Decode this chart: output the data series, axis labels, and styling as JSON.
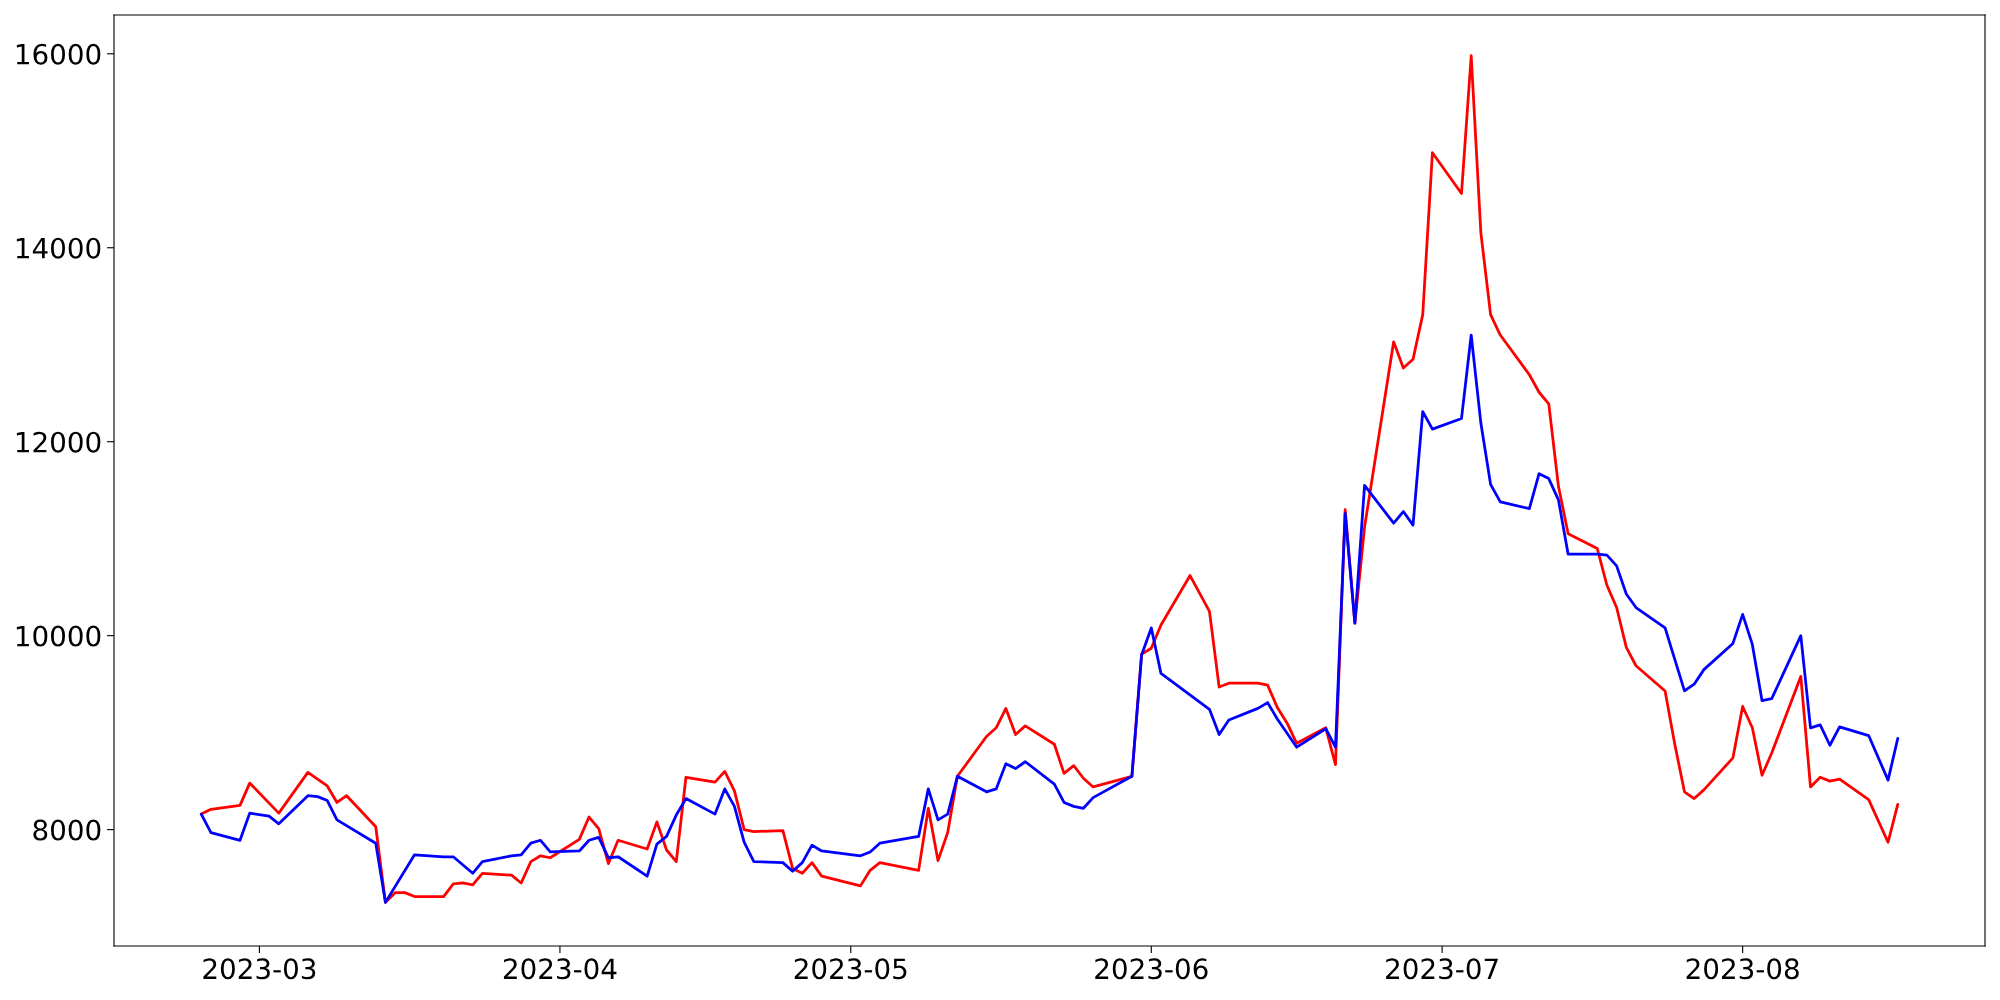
{
  "chart_data": {
    "type": "line",
    "xlim": [
      "2023-02-14",
      "2023-08-26"
    ],
    "ylim": [
      6800,
      16400
    ],
    "xticks": [
      {
        "value": "2023-03-01",
        "label": "2023-03"
      },
      {
        "value": "2023-04-01",
        "label": "2023-04"
      },
      {
        "value": "2023-05-01",
        "label": "2023-05"
      },
      {
        "value": "2023-06-01",
        "label": "2023-06"
      },
      {
        "value": "2023-07-01",
        "label": "2023-07"
      },
      {
        "value": "2023-08-01",
        "label": "2023-08"
      }
    ],
    "yticks": [
      8000,
      10000,
      12000,
      14000,
      16000
    ],
    "grid": false,
    "series": [
      {
        "color": "#ff0000",
        "x": [
          "2023-02-23",
          "2023-02-24",
          "2023-02-27",
          "2023-02-28",
          "2023-03-03",
          "2023-03-06",
          "2023-03-08",
          "2023-03-09",
          "2023-03-10",
          "2023-03-13",
          "2023-03-14",
          "2023-03-15",
          "2023-03-16",
          "2023-03-17",
          "2023-03-20",
          "2023-03-21",
          "2023-03-22",
          "2023-03-23",
          "2023-03-24",
          "2023-03-27",
          "2023-03-28",
          "2023-03-29",
          "2023-03-30",
          "2023-03-31",
          "2023-04-03",
          "2023-04-04",
          "2023-04-05",
          "2023-04-06",
          "2023-04-07",
          "2023-04-10",
          "2023-04-11",
          "2023-04-12",
          "2023-04-13",
          "2023-04-14",
          "2023-04-17",
          "2023-04-18",
          "2023-04-19",
          "2023-04-20",
          "2023-04-21",
          "2023-04-24",
          "2023-04-25",
          "2023-04-26",
          "2023-04-27",
          "2023-04-28",
          "2023-05-02",
          "2023-05-03",
          "2023-05-04",
          "2023-05-08",
          "2023-05-09",
          "2023-05-10",
          "2023-05-11",
          "2023-05-12",
          "2023-05-15",
          "2023-05-16",
          "2023-05-17",
          "2023-05-18",
          "2023-05-19",
          "2023-05-22",
          "2023-05-23",
          "2023-05-24",
          "2023-05-25",
          "2023-05-26",
          "2023-05-30",
          "2023-05-31",
          "2023-06-01",
          "2023-06-02",
          "2023-06-05",
          "2023-06-07",
          "2023-06-08",
          "2023-06-09",
          "2023-06-12",
          "2023-06-13",
          "2023-06-14",
          "2023-06-15",
          "2023-06-16",
          "2023-06-19",
          "2023-06-20",
          "2023-06-21",
          "2023-06-22",
          "2023-06-23",
          "2023-06-26",
          "2023-06-27",
          "2023-06-28",
          "2023-06-29",
          "2023-06-30",
          "2023-07-03",
          "2023-07-04",
          "2023-07-05",
          "2023-07-06",
          "2023-07-07",
          "2023-07-10",
          "2023-07-11",
          "2023-07-12",
          "2023-07-13",
          "2023-07-14",
          "2023-07-17",
          "2023-07-18",
          "2023-07-19",
          "2023-07-20",
          "2023-07-21",
          "2023-07-24",
          "2023-07-25",
          "2023-07-26",
          "2023-07-27",
          "2023-07-28",
          "2023-07-31",
          "2023-08-01",
          "2023-08-02",
          "2023-08-03",
          "2023-08-04",
          "2023-08-07",
          "2023-08-08",
          "2023-08-09",
          "2023-08-10",
          "2023-08-11",
          "2023-08-14",
          "2023-08-16",
          "2023-08-17"
        ],
        "values": [
          8160,
          8210,
          8250,
          8480,
          8170,
          8590,
          8450,
          8280,
          8350,
          8030,
          7250,
          7350,
          7350,
          7310,
          7310,
          7440,
          7450,
          7430,
          7550,
          7530,
          7450,
          7670,
          7730,
          7710,
          7900,
          8130,
          8010,
          7650,
          7890,
          7800,
          8080,
          7790,
          7670,
          8540,
          8490,
          8600,
          8400,
          8000,
          7980,
          7990,
          7600,
          7550,
          7660,
          7520,
          7420,
          7580,
          7660,
          7580,
          8220,
          7680,
          7970,
          8550,
          8960,
          9050,
          9250,
          8980,
          9070,
          8880,
          8580,
          8660,
          8530,
          8440,
          8550,
          9810,
          9870,
          10110,
          10620,
          10250,
          9470,
          9510,
          9510,
          9490,
          9260,
          9100,
          8890,
          9050,
          8670,
          11300,
          10130,
          11120,
          13030,
          12760,
          12850,
          13310,
          14980,
          14560,
          15980,
          14150,
          13310,
          13100,
          12690,
          12510,
          12390,
          11540,
          11050,
          10900,
          10520,
          10290,
          9880,
          9690,
          9430,
          8880,
          8390,
          8320,
          8410,
          8740,
          9270,
          9050,
          8560,
          8790,
          9580,
          8440,
          8540,
          8500,
          8520,
          8310,
          7870,
          8260
        ]
      },
      {
        "color": "#0000ff",
        "x": [
          "2023-02-23",
          "2023-02-24",
          "2023-02-27",
          "2023-02-28",
          "2023-03-02",
          "2023-03-03",
          "2023-03-06",
          "2023-03-07",
          "2023-03-08",
          "2023-03-09",
          "2023-03-13",
          "2023-03-14",
          "2023-03-17",
          "2023-03-20",
          "2023-03-21",
          "2023-03-23",
          "2023-03-24",
          "2023-03-27",
          "2023-03-28",
          "2023-03-29",
          "2023-03-30",
          "2023-03-31",
          "2023-04-03",
          "2023-04-04",
          "2023-04-05",
          "2023-04-06",
          "2023-04-07",
          "2023-04-10",
          "2023-04-11",
          "2023-04-12",
          "2023-04-13",
          "2023-04-14",
          "2023-04-17",
          "2023-04-18",
          "2023-04-19",
          "2023-04-20",
          "2023-04-21",
          "2023-04-24",
          "2023-04-25",
          "2023-04-26",
          "2023-04-27",
          "2023-04-28",
          "2023-05-02",
          "2023-05-03",
          "2023-05-04",
          "2023-05-08",
          "2023-05-09",
          "2023-05-10",
          "2023-05-11",
          "2023-05-12",
          "2023-05-15",
          "2023-05-16",
          "2023-05-17",
          "2023-05-18",
          "2023-05-19",
          "2023-05-22",
          "2023-05-23",
          "2023-05-24",
          "2023-05-25",
          "2023-05-26",
          "2023-05-30",
          "2023-05-31",
          "2023-06-01",
          "2023-06-02",
          "2023-06-07",
          "2023-06-08",
          "2023-06-09",
          "2023-06-12",
          "2023-06-13",
          "2023-06-14",
          "2023-06-16",
          "2023-06-19",
          "2023-06-20",
          "2023-06-21",
          "2023-06-22",
          "2023-06-23",
          "2023-06-26",
          "2023-06-27",
          "2023-06-28",
          "2023-06-29",
          "2023-06-30",
          "2023-07-03",
          "2023-07-04",
          "2023-07-05",
          "2023-07-06",
          "2023-07-07",
          "2023-07-10",
          "2023-07-11",
          "2023-07-12",
          "2023-07-13",
          "2023-07-14",
          "2023-07-17",
          "2023-07-18",
          "2023-07-19",
          "2023-07-20",
          "2023-07-21",
          "2023-07-24",
          "2023-07-26",
          "2023-07-27",
          "2023-07-28",
          "2023-07-31",
          "2023-08-01",
          "2023-08-02",
          "2023-08-03",
          "2023-08-04",
          "2023-08-07",
          "2023-08-08",
          "2023-08-09",
          "2023-08-10",
          "2023-08-11",
          "2023-08-14",
          "2023-08-16",
          "2023-08-17"
        ],
        "values": [
          8160,
          7970,
          7890,
          8170,
          8140,
          8060,
          8350,
          8340,
          8300,
          8100,
          7860,
          7250,
          7740,
          7720,
          7720,
          7550,
          7670,
          7730,
          7740,
          7860,
          7890,
          7770,
          7780,
          7890,
          7920,
          7710,
          7720,
          7520,
          7850,
          7930,
          8150,
          8320,
          8160,
          8420,
          8240,
          7870,
          7670,
          7660,
          7570,
          7660,
          7840,
          7780,
          7730,
          7770,
          7860,
          7930,
          8420,
          8100,
          8160,
          8550,
          8390,
          8420,
          8680,
          8630,
          8700,
          8470,
          8280,
          8240,
          8220,
          8330,
          8550,
          9800,
          10080,
          9610,
          9240,
          8980,
          9130,
          9250,
          9310,
          9140,
          8850,
          9040,
          8850,
          11260,
          10130,
          11550,
          11160,
          11280,
          11140,
          12310,
          12130,
          12240,
          13100,
          12190,
          11560,
          11380,
          11310,
          11670,
          11620,
          11400,
          10840,
          10840,
          10830,
          10720,
          10430,
          10290,
          10080,
          9430,
          9500,
          9650,
          9920,
          10220,
          9910,
          9330,
          9350,
          10000,
          9050,
          9080,
          8870,
          9060,
          8970,
          8510,
          8940
        ]
      }
    ]
  }
}
